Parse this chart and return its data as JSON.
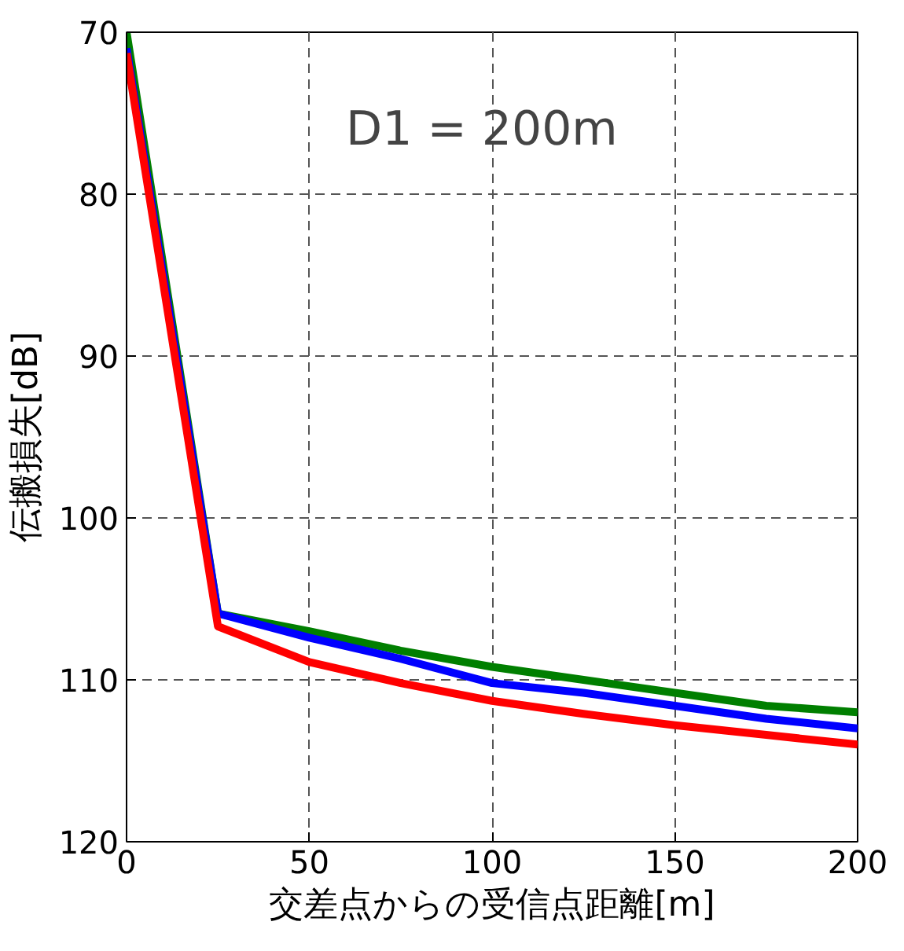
{
  "chart_data": {
    "type": "line",
    "xlabel": "交差点からの受信点距離[m]",
    "ylabel": "伝搬損失[dB]",
    "annotations": [
      "D1 = 200m"
    ],
    "x": [
      0,
      25,
      50,
      75,
      100,
      125,
      150,
      175,
      200
    ],
    "series": [
      {
        "color": "#007f00",
        "values": [
          70.0,
          105.9,
          107.0,
          108.2,
          109.2,
          110.0,
          110.8,
          111.6,
          112.0
        ]
      },
      {
        "color": "#0000ff",
        "values": [
          71.0,
          105.9,
          107.4,
          108.7,
          110.2,
          110.8,
          111.6,
          112.4,
          113.0
        ]
      },
      {
        "color": "#ff0000",
        "values": [
          71.3,
          106.7,
          108.9,
          110.2,
          111.3,
          112.1,
          112.8,
          113.4,
          114.0
        ]
      }
    ],
    "xlim": [
      0,
      200
    ],
    "ylim": [
      120,
      70
    ],
    "xticks": [
      0,
      50,
      100,
      150,
      200
    ],
    "yticks": [
      70,
      80,
      90,
      100,
      110,
      120
    ],
    "grid": true,
    "line_style": "solid",
    "marker": "none"
  }
}
